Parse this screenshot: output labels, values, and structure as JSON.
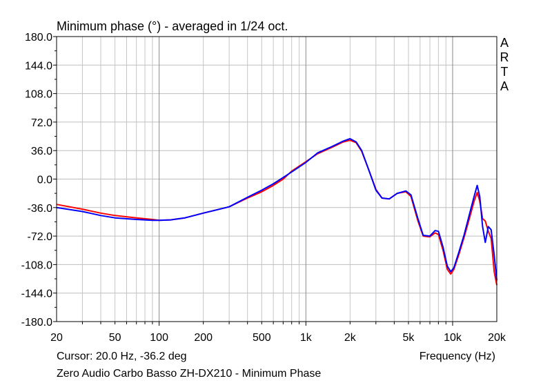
{
  "chart_data": {
    "type": "line",
    "title": "Minimum phase (°) - averaged in 1/24 oct.",
    "xlabel": "Frequency (Hz)",
    "ylabel": "",
    "x_scale": "log",
    "xlim": [
      20,
      20000
    ],
    "ylim": [
      -180,
      180
    ],
    "grid": true,
    "yticks": [
      "180.0",
      "144.0",
      "108.0",
      "72.0",
      "36.0",
      "0.0",
      "-36.0",
      "-72.0",
      "-108.0",
      "-144.0",
      "-180.0"
    ],
    "xticks": [
      {
        "value": 20,
        "label": "20"
      },
      {
        "value": 50,
        "label": "50"
      },
      {
        "value": 100,
        "label": "100"
      },
      {
        "value": 200,
        "label": "200"
      },
      {
        "value": 500,
        "label": "500"
      },
      {
        "value": 1000,
        "label": "1k"
      },
      {
        "value": 2000,
        "label": "2k"
      },
      {
        "value": 5000,
        "label": "5k"
      },
      {
        "value": 10000,
        "label": "10k"
      },
      {
        "value": 20000,
        "label": "20k"
      }
    ],
    "series": [
      {
        "color": "#ff0000",
        "points": [
          [
            20,
            -32
          ],
          [
            30,
            -38
          ],
          [
            40,
            -43
          ],
          [
            50,
            -46
          ],
          [
            70,
            -49
          ],
          [
            90,
            -51
          ],
          [
            100,
            -52
          ],
          [
            120,
            -51.5
          ],
          [
            150,
            -49
          ],
          [
            200,
            -43
          ],
          [
            300,
            -35
          ],
          [
            400,
            -24
          ],
          [
            500,
            -16
          ],
          [
            600,
            -8
          ],
          [
            700,
            0
          ],
          [
            800,
            10
          ],
          [
            1000,
            22
          ],
          [
            1200,
            32
          ],
          [
            1500,
            40
          ],
          [
            1800,
            47
          ],
          [
            2000,
            49
          ],
          [
            2200,
            46
          ],
          [
            2400,
            35
          ],
          [
            2700,
            10
          ],
          [
            3000,
            -13
          ],
          [
            3300,
            -24
          ],
          [
            3700,
            -25
          ],
          [
            4200,
            -18
          ],
          [
            4800,
            -16
          ],
          [
            5200,
            -22
          ],
          [
            5800,
            -53
          ],
          [
            6300,
            -72
          ],
          [
            7000,
            -73
          ],
          [
            7600,
            -68
          ],
          [
            8000,
            -70
          ],
          [
            8600,
            -90
          ],
          [
            9200,
            -114
          ],
          [
            9700,
            -120
          ],
          [
            10200,
            -114
          ],
          [
            11000,
            -96
          ],
          [
            12000,
            -73
          ],
          [
            13000,
            -50
          ],
          [
            14000,
            -28
          ],
          [
            14700,
            -17
          ],
          [
            15300,
            -28
          ],
          [
            16000,
            -50
          ],
          [
            16700,
            -53
          ],
          [
            17500,
            -66
          ],
          [
            18300,
            -75
          ],
          [
            19200,
            -117
          ],
          [
            20000,
            -134
          ]
        ]
      },
      {
        "color": "#0000ff",
        "points": [
          [
            20,
            -36
          ],
          [
            30,
            -41
          ],
          [
            40,
            -46
          ],
          [
            50,
            -49
          ],
          [
            70,
            -51
          ],
          [
            90,
            -52
          ],
          [
            100,
            -52
          ],
          [
            120,
            -51.5
          ],
          [
            150,
            -49
          ],
          [
            200,
            -43
          ],
          [
            300,
            -35
          ],
          [
            400,
            -23
          ],
          [
            500,
            -14
          ],
          [
            600,
            -6
          ],
          [
            700,
            2
          ],
          [
            800,
            9
          ],
          [
            1000,
            21
          ],
          [
            1200,
            33
          ],
          [
            1500,
            41
          ],
          [
            1800,
            48
          ],
          [
            2000,
            51
          ],
          [
            2200,
            47
          ],
          [
            2400,
            36
          ],
          [
            2700,
            10
          ],
          [
            3000,
            -14
          ],
          [
            3300,
            -24
          ],
          [
            3700,
            -25
          ],
          [
            4200,
            -18
          ],
          [
            4800,
            -15
          ],
          [
            5200,
            -20
          ],
          [
            5800,
            -50
          ],
          [
            6300,
            -71
          ],
          [
            7000,
            -72
          ],
          [
            7600,
            -65
          ],
          [
            8000,
            -66
          ],
          [
            8600,
            -86
          ],
          [
            9200,
            -110
          ],
          [
            9700,
            -117
          ],
          [
            10200,
            -112
          ],
          [
            11000,
            -93
          ],
          [
            12000,
            -70
          ],
          [
            13000,
            -45
          ],
          [
            14000,
            -22
          ],
          [
            14700,
            -8
          ],
          [
            15300,
            -22
          ],
          [
            16000,
            -60
          ],
          [
            16700,
            -80
          ],
          [
            17500,
            -60
          ],
          [
            18300,
            -64
          ],
          [
            19200,
            -96
          ],
          [
            20000,
            -128
          ]
        ]
      }
    ],
    "annotations": [
      "ARTA"
    ]
  },
  "footer": {
    "cursor": "Cursor: 20.0 Hz, -36.2 deg",
    "xlabel": "Frequency (Hz)",
    "caption": "Zero Audio Carbo Basso ZH-DX210 - Minimum Phase"
  },
  "brand": "ARTA"
}
